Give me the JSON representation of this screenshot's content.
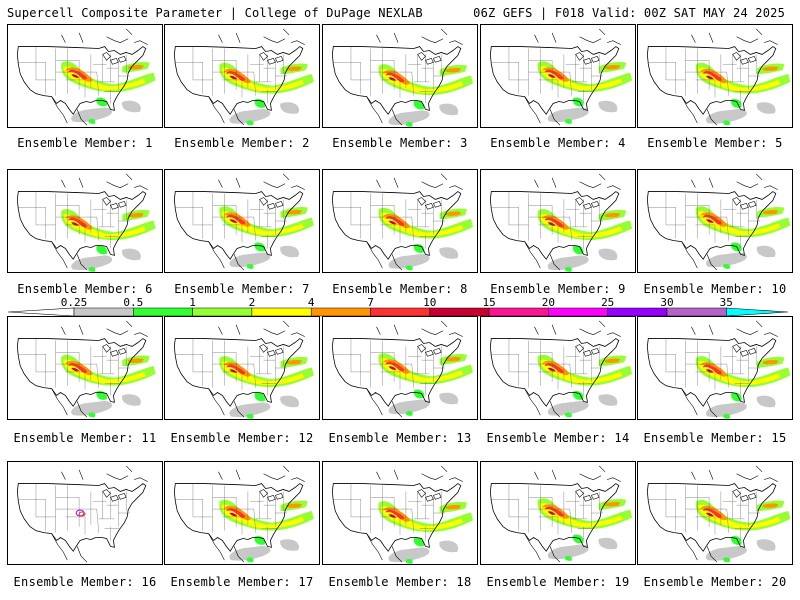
{
  "header": {
    "left": "Supercell Composite Parameter | College of DuPage NEXLAB",
    "right": "06Z GEFS | F018 Valid: 00Z SAT MAY 24 2025"
  },
  "colorbar": {
    "levels": [
      "0.25",
      "0.5",
      "1",
      "2",
      "4",
      "7",
      "10",
      "15",
      "20",
      "25",
      "30",
      "35"
    ],
    "colors": [
      "#c8c8c8",
      "#32ff32",
      "#96ff32",
      "#ffff00",
      "#ff9600",
      "#ff3232",
      "#c80032",
      "#ff1493",
      "#ff00ff",
      "#9600ff",
      "#b464c8",
      "#00ffff"
    ]
  },
  "panels": [
    {
      "caption": "Ensemble Member: 1"
    },
    {
      "caption": "Ensemble Member: 2"
    },
    {
      "caption": "Ensemble Member: 3"
    },
    {
      "caption": "Ensemble Member: 4"
    },
    {
      "caption": "Ensemble Member: 5"
    },
    {
      "caption": "Ensemble Member: 6"
    },
    {
      "caption": "Ensemble Member: 7"
    },
    {
      "caption": "Ensemble Member: 8"
    },
    {
      "caption": "Ensemble Member: 9"
    },
    {
      "caption": "Ensemble Member: 10"
    },
    {
      "caption": "Ensemble Member: 11"
    },
    {
      "caption": "Ensemble Member: 12"
    },
    {
      "caption": "Ensemble Member: 13"
    },
    {
      "caption": "Ensemble Member: 14"
    },
    {
      "caption": "Ensemble Member: 15"
    },
    {
      "caption": "Ensemble Member: 16"
    },
    {
      "caption": "Ensemble Member: 17"
    },
    {
      "caption": "Ensemble Member: 18"
    },
    {
      "caption": "Ensemble Member: 19"
    },
    {
      "caption": "Ensemble Member: 20"
    }
  ]
}
